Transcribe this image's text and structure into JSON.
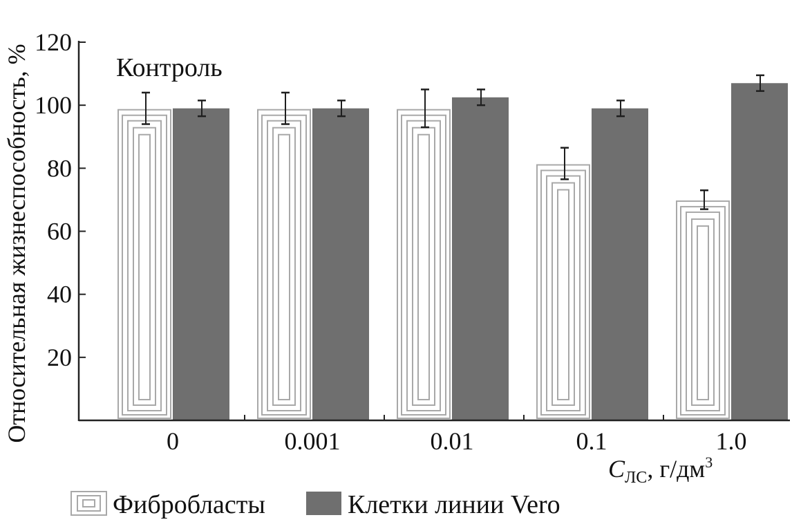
{
  "chart_data": {
    "type": "bar",
    "categories": [
      "0",
      "0.001",
      "0.01",
      "0.1",
      "1.0"
    ],
    "series": [
      {
        "name": "Фибробласты",
        "values": [
          99,
          99,
          99,
          81.5,
          70
        ],
        "errors": [
          5,
          5,
          6,
          5,
          3
        ]
      },
      {
        "name": "Клетки линии Vero",
        "values": [
          99,
          99,
          102.5,
          99,
          107
        ],
        "errors": [
          2.5,
          2.5,
          2.5,
          2.5,
          2.5
        ]
      }
    ],
    "ylabel": "Относительная жизнеспособность, %",
    "xlabel_main": "C",
    "xlabel_sub": "ЛС",
    "xlabel_rest": ", г/дм",
    "xlabel_sup": "3",
    "annotation": "Контроль",
    "y_ticks": [
      "20",
      "40",
      "60",
      "80",
      "100",
      "120"
    ],
    "ylim": [
      0,
      120
    ],
    "legend_position": "bottom",
    "colors": {
      "fibroblasts_stroke": "#a8a8a8",
      "vero_fill": "#6f6f6f",
      "axis": "#222222",
      "error": "#1e1e1e"
    }
  }
}
